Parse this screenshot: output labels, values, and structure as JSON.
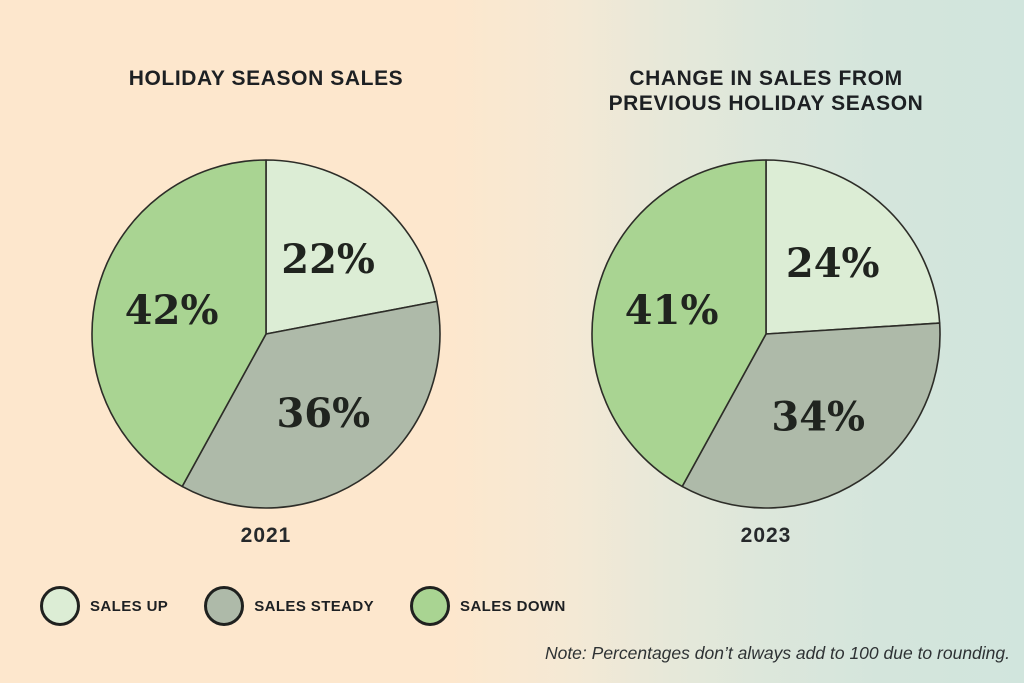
{
  "charts": [
    {
      "title_line1": "HOLIDAY SEASON SALES",
      "title_line2": "",
      "year": "2021"
    },
    {
      "title_line1": "CHANGE IN SALES FROM",
      "title_line2": "PREVIOUS HOLIDAY SEASON",
      "year": "2023"
    }
  ],
  "legend": {
    "items": [
      {
        "label": "SALES UP",
        "color": "#dcedd5"
      },
      {
        "label": "SALES STEADY",
        "color": "#aebaa9"
      },
      {
        "label": "SALES DOWN",
        "color": "#a9d492"
      }
    ]
  },
  "note": "Note: Percentages don’t always add to 100 due to rounding.",
  "colors": {
    "sales_up": "#dcedd5",
    "sales_steady": "#aebaa9",
    "sales_down": "#a9d492",
    "slice_outline": "#2d2d28",
    "background_left": "#fde7cd",
    "background_right": "#d1e5dd",
    "text": "#1d2023"
  },
  "chart_data": [
    {
      "type": "pie",
      "title": "HOLIDAY SEASON SALES",
      "year_label": "2021",
      "labels": [
        "Sales up",
        "Sales steady",
        "Sales down"
      ],
      "values": [
        22,
        36,
        42
      ],
      "value_labels": [
        "22%",
        "36%",
        "42%"
      ],
      "colors": [
        "#dcedd5",
        "#aebaa9",
        "#a9d492"
      ],
      "start_angle_deg": 0,
      "direction": "clockwise",
      "note": "Percentages don’t always add to 100 due to rounding."
    },
    {
      "type": "pie",
      "title": "CHANGE IN SALES FROM PREVIOUS HOLIDAY SEASON",
      "year_label": "2023",
      "labels": [
        "Sales up",
        "Sales steady",
        "Sales down"
      ],
      "values": [
        24,
        34,
        41
      ],
      "value_labels": [
        "24%",
        "34%",
        "41%"
      ],
      "colors": [
        "#dcedd5",
        "#aebaa9",
        "#a9d492"
      ],
      "start_angle_deg": 0,
      "direction": "clockwise",
      "note": "Percentages don’t always add to 100 due to rounding."
    }
  ]
}
